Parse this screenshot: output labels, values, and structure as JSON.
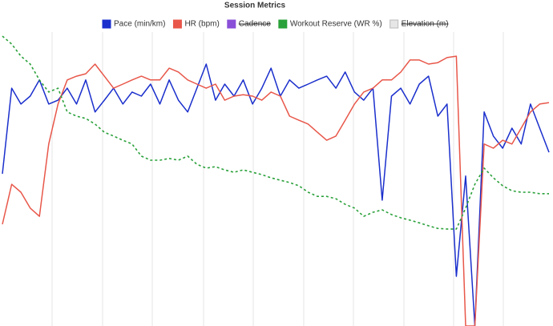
{
  "chart_data": {
    "type": "line",
    "title": "Session Metrics",
    "ylim": [
      0,
      100
    ],
    "series": [
      {
        "name": "Pace (min/km)",
        "color": "#1a2fcc",
        "values": [
          51.8,
          80.9,
          75.5,
          78.2,
          83.7,
          75.5,
          76.8,
          80.9,
          75.5,
          83.7,
          72.8,
          76.8,
          80.9,
          75.5,
          79.6,
          78.2,
          82.3,
          75.5,
          83.7,
          76.8,
          72.8,
          80.9,
          89.1,
          76.8,
          82.3,
          78.2,
          83.7,
          75.5,
          80.9,
          87.7,
          78.2,
          83.7,
          80.9,
          82.3,
          83.7,
          85.0,
          80.9,
          86.4,
          79.6,
          76.8,
          80.9,
          42.8,
          78.2,
          80.9,
          75.5,
          82.3,
          85.0,
          71.4,
          75.5,
          16.9,
          51.0,
          0,
          72.8,
          64.6,
          60.5,
          67.3,
          61.9,
          75.5,
          67.3,
          59.1
        ]
      },
      {
        "name": "HR (bpm)",
        "color": "#e8574a",
        "values": [
          34.6,
          48.2,
          45.5,
          40.1,
          37.3,
          61.9,
          75.5,
          83.7,
          85.0,
          85.8,
          89.1,
          85.0,
          80.9,
          82.3,
          83.7,
          85.0,
          83.7,
          83.7,
          87.7,
          86.4,
          83.7,
          82.3,
          80.9,
          82.3,
          76.8,
          78.2,
          78.7,
          78.2,
          76.8,
          79.6,
          78.2,
          71.4,
          70.0,
          68.7,
          65.9,
          63.2,
          64.6,
          70.0,
          75.5,
          79.6,
          80.9,
          83.7,
          83.7,
          86.4,
          90.5,
          90.5,
          89.1,
          89.6,
          91.3,
          91.8,
          0,
          0,
          61.9,
          60.5,
          63.2,
          61.9,
          67.3,
          72.8,
          75.5,
          76.0
        ]
      },
      {
        "name": "Cadence",
        "color": "#8a4fd8",
        "hidden": true
      },
      {
        "name": "Workout Reserve (WR %)",
        "color": "#2aa13a",
        "line_style": "dashed",
        "values": [
          98.6,
          95.9,
          91.8,
          89.1,
          83.7,
          79.6,
          80.9,
          72.8,
          71.4,
          70.6,
          68.7,
          65.9,
          64.6,
          63.2,
          61.9,
          57.8,
          56.4,
          56.4,
          57.0,
          56.4,
          57.8,
          55.0,
          53.7,
          54.2,
          53.1,
          52.3,
          53.1,
          52.3,
          51.5,
          50.4,
          49.6,
          48.8,
          47.7,
          45.5,
          44.1,
          44.1,
          43.3,
          41.4,
          40.1,
          37.3,
          38.7,
          39.5,
          37.9,
          36.8,
          36.0,
          35.1,
          34.1,
          33.2,
          33.0,
          33.0,
          40.1,
          48.2,
          53.7,
          50.4,
          47.7,
          46.0,
          45.5,
          45.5,
          45.0,
          45.0
        ]
      },
      {
        "name": "Elevation (m)",
        "color": "#e6e6e6",
        "hidden": true
      }
    ]
  }
}
